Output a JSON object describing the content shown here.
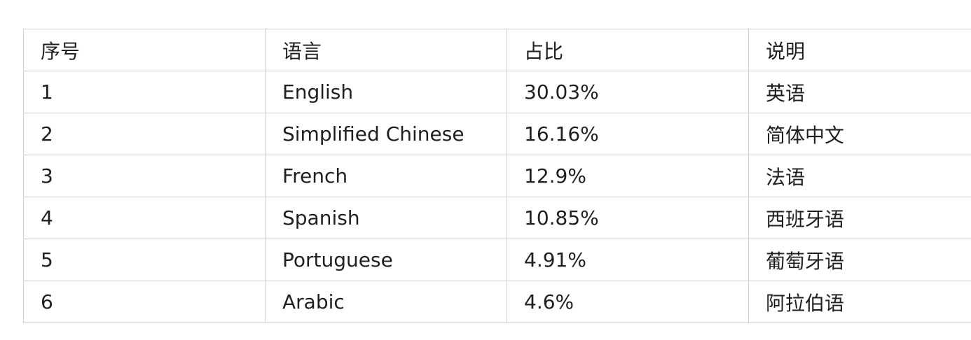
{
  "table": {
    "headers": [
      "序号",
      "语言",
      "占比",
      "说明"
    ],
    "rows": [
      [
        "1",
        "English",
        "30.03%",
        "英语"
      ],
      [
        "2",
        "Simplified Chinese",
        "16.16%",
        "简体中文"
      ],
      [
        "3",
        "French",
        "12.9%",
        "法语"
      ],
      [
        "4",
        "Spanish",
        "10.85%",
        "西班牙语"
      ],
      [
        "5",
        "Portuguese",
        "4.91%",
        "葡萄牙语"
      ],
      [
        "6",
        "Arabic",
        "4.6%",
        "阿拉伯语"
      ]
    ]
  }
}
